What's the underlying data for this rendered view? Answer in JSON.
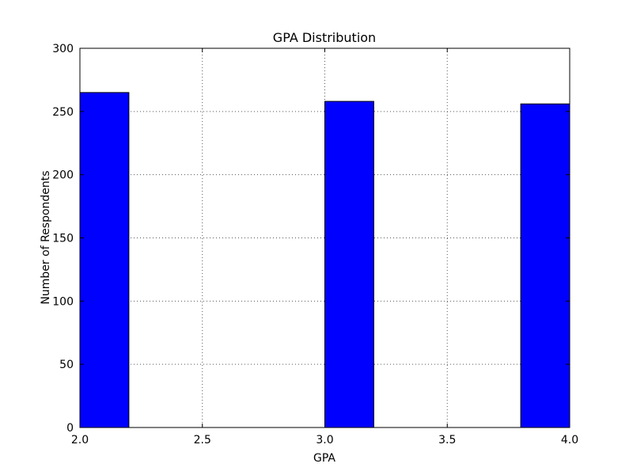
{
  "chart_data": {
    "type": "bar",
    "title": "GPA Distribution",
    "xlabel": "GPA",
    "ylabel": "Number of Respondents",
    "xlim": [
      2.0,
      4.0
    ],
    "ylim": [
      0,
      300
    ],
    "xticks": [
      "2.0",
      "2.5",
      "3.0",
      "3.5",
      "4.0"
    ],
    "yticks": [
      "0",
      "50",
      "100",
      "150",
      "200",
      "250",
      "300"
    ],
    "grid": true,
    "bar_color": "#0000ff",
    "bins": [
      {
        "start": 2.0,
        "end": 2.2,
        "value": 265
      },
      {
        "start": 2.2,
        "end": 2.4,
        "value": 0
      },
      {
        "start": 2.4,
        "end": 2.6,
        "value": 0
      },
      {
        "start": 2.6,
        "end": 2.8,
        "value": 0
      },
      {
        "start": 2.8,
        "end": 3.0,
        "value": 0
      },
      {
        "start": 3.0,
        "end": 3.2,
        "value": 258
      },
      {
        "start": 3.2,
        "end": 3.4,
        "value": 0
      },
      {
        "start": 3.4,
        "end": 3.6,
        "value": 0
      },
      {
        "start": 3.6,
        "end": 3.8,
        "value": 0
      },
      {
        "start": 3.8,
        "end": 4.0,
        "value": 256
      }
    ]
  }
}
